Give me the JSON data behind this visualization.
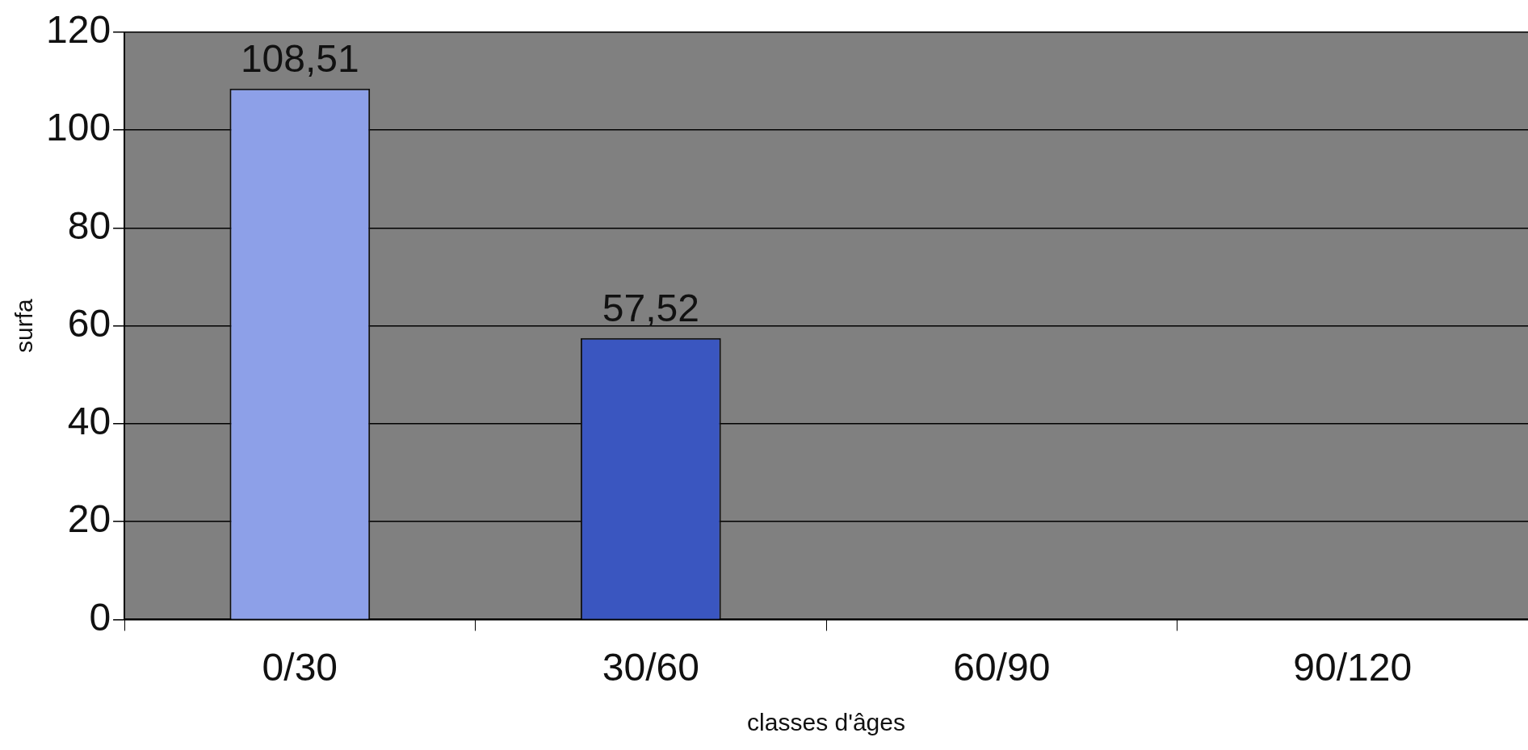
{
  "chart_data": {
    "type": "bar",
    "categories": [
      "0/30",
      "30/60",
      "60/90",
      "90/120"
    ],
    "values": [
      108.51,
      57.52,
      null,
      null
    ],
    "colors": [
      "#8da0e8",
      "#3a56c0",
      "#3a56c0",
      "#3a56c0"
    ],
    "value_labels": [
      "108,51",
      "57,52",
      null,
      null
    ],
    "xlabel": "classes d'âges",
    "ylabel": "surfa",
    "ylim": [
      0,
      120
    ],
    "yticks": [
      0,
      20,
      40,
      60,
      80,
      100,
      120
    ],
    "grid": "y",
    "legend": false
  }
}
